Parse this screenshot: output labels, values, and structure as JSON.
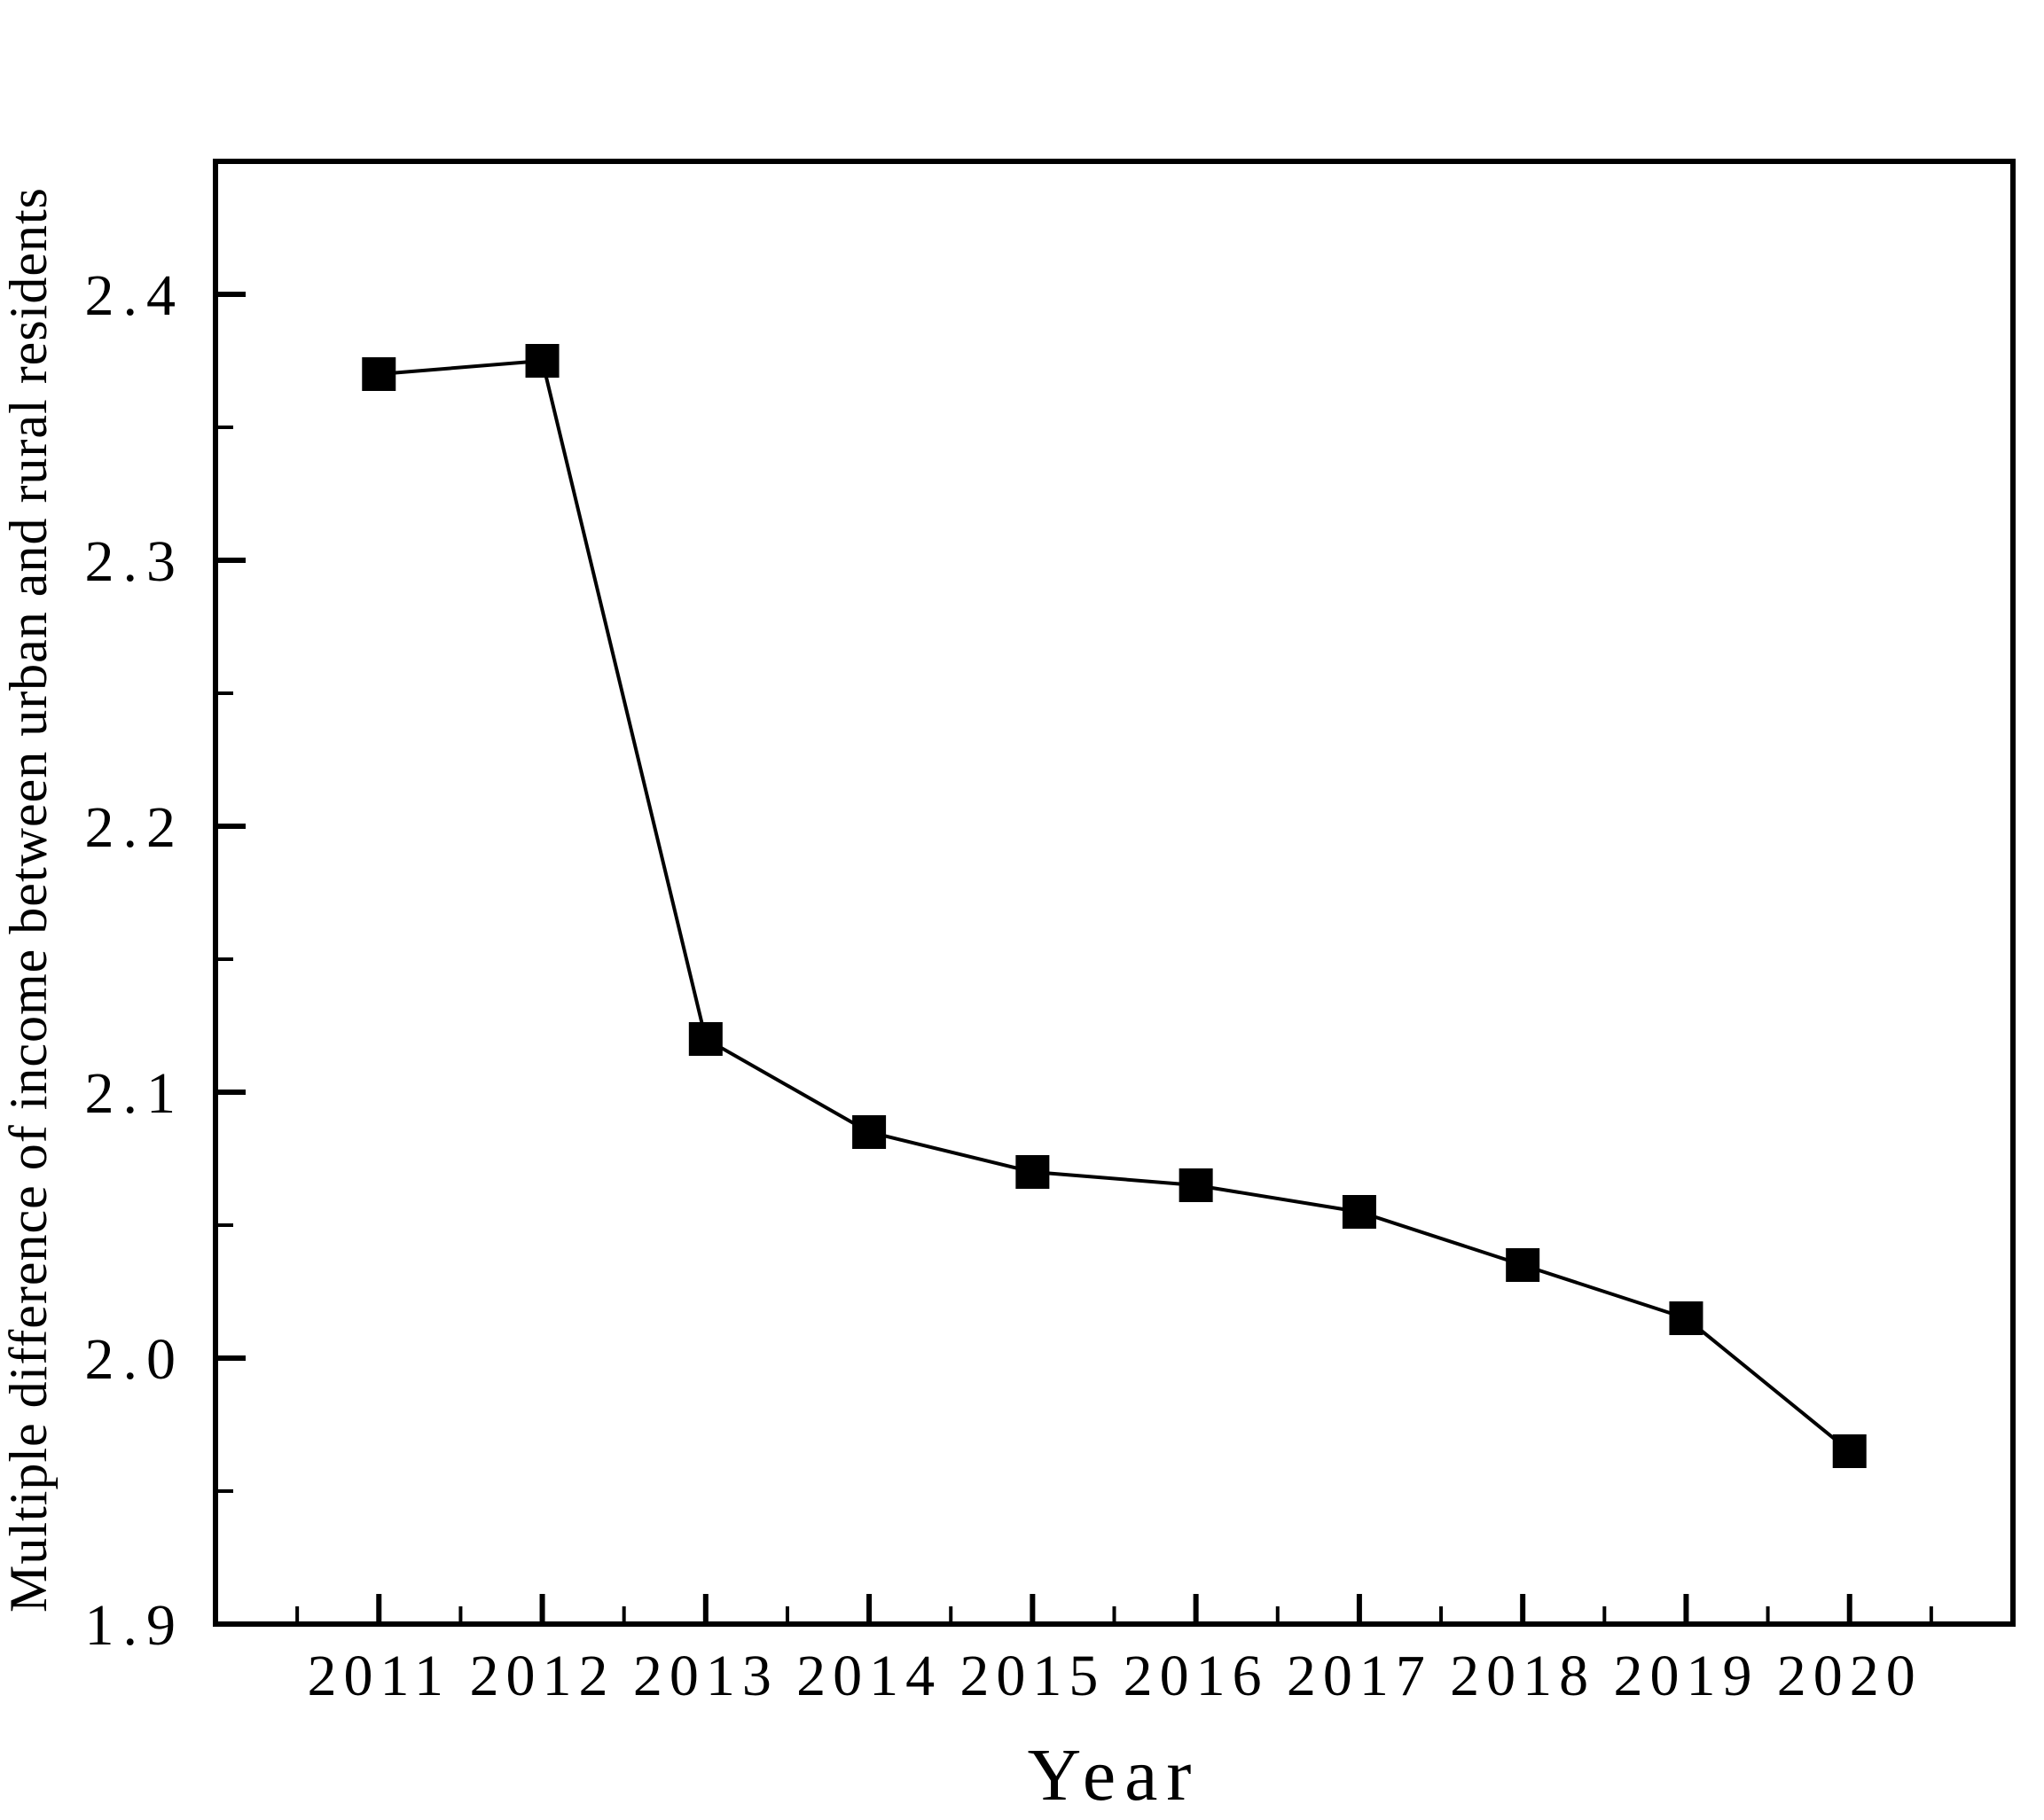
{
  "chart_data": {
    "type": "line",
    "title": "",
    "xlabel": "Year",
    "ylabel": "Multiple difference of income between urban and rural residents",
    "categories": [
      2011,
      2012,
      2013,
      2014,
      2015,
      2016,
      2017,
      2018,
      2019,
      2020
    ],
    "series": [
      {
        "name": "Multiple difference of income between urban and rural residents",
        "values": [
          2.37,
          2.375,
          2.12,
          2.085,
          2.07,
          2.065,
          2.055,
          2.035,
          2.015,
          1.965
        ]
      }
    ],
    "xlim": [
      2010,
      2021
    ],
    "ylim": [
      1.9,
      2.45
    ],
    "x_major_ticks": [
      2011,
      2012,
      2013,
      2014,
      2015,
      2016,
      2017,
      2018,
      2019,
      2020
    ],
    "x_tick_labels": [
      "2011",
      "2012",
      "2013",
      "2014",
      "2015",
      "2016",
      "2017",
      "2018",
      "2019",
      "2020"
    ],
    "x_minor_step": 0.5,
    "y_major_ticks": [
      1.9,
      2.0,
      2.1,
      2.2,
      2.3,
      2.4
    ],
    "y_tick_labels": [
      "1.9",
      "2.0",
      "2.1",
      "2.2",
      "2.3",
      "2.4"
    ],
    "y_minor_step": 0.05,
    "grid": false,
    "legend": null,
    "marker": "filled-square",
    "marker_size_px": 38,
    "line_color": "#000000",
    "marker_color": "#000000",
    "axis_color": "#000000",
    "background_color": "#ffffff"
  }
}
